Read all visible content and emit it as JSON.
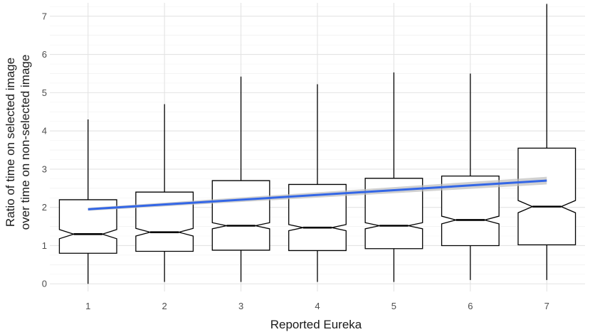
{
  "chart_data": {
    "type": "boxplot",
    "notched": true,
    "xlabel": "Reported Eureka",
    "ylabel_lines": [
      "Ratio of time on selected image",
      "over time on non-selected image"
    ],
    "categories": [
      "1",
      "2",
      "3",
      "4",
      "5",
      "6",
      "7"
    ],
    "yticks": [
      "0",
      "1",
      "2",
      "3",
      "4",
      "5",
      "6",
      "7"
    ],
    "ylim": [
      -0.2,
      7.35
    ],
    "grid": true,
    "boxes": [
      {
        "category": "1",
        "whisker_low": 0.0,
        "q1": 0.8,
        "median": 1.3,
        "q3": 2.2,
        "whisker_high": 4.3,
        "notch": 0.12
      },
      {
        "category": "2",
        "whisker_low": 0.05,
        "q1": 0.85,
        "median": 1.35,
        "q3": 2.4,
        "whisker_high": 4.7,
        "notch": 0.1
      },
      {
        "category": "3",
        "whisker_low": 0.05,
        "q1": 0.88,
        "median": 1.52,
        "q3": 2.7,
        "whisker_high": 5.42,
        "notch": 0.08
      },
      {
        "category": "4",
        "whisker_low": 0.05,
        "q1": 0.87,
        "median": 1.47,
        "q3": 2.6,
        "whisker_high": 5.22,
        "notch": 0.08
      },
      {
        "category": "5",
        "whisker_low": 0.05,
        "q1": 0.92,
        "median": 1.52,
        "q3": 2.76,
        "whisker_high": 5.53,
        "notch": 0.08
      },
      {
        "category": "6",
        "whisker_low": 0.1,
        "q1": 1.0,
        "median": 1.67,
        "q3": 2.82,
        "whisker_high": 5.5,
        "notch": 0.1
      },
      {
        "category": "7",
        "whisker_low": 0.1,
        "q1": 1.02,
        "median": 2.02,
        "q3": 3.55,
        "whisker_high": 7.32,
        "notch": 0.16
      }
    ],
    "trend_line": {
      "x": [
        1,
        7
      ],
      "y": [
        1.95,
        2.7
      ],
      "ci_halfwidth": [
        0.04,
        0.1
      ],
      "color": "#3366e6",
      "band_color": "#bdbdbd"
    }
  }
}
